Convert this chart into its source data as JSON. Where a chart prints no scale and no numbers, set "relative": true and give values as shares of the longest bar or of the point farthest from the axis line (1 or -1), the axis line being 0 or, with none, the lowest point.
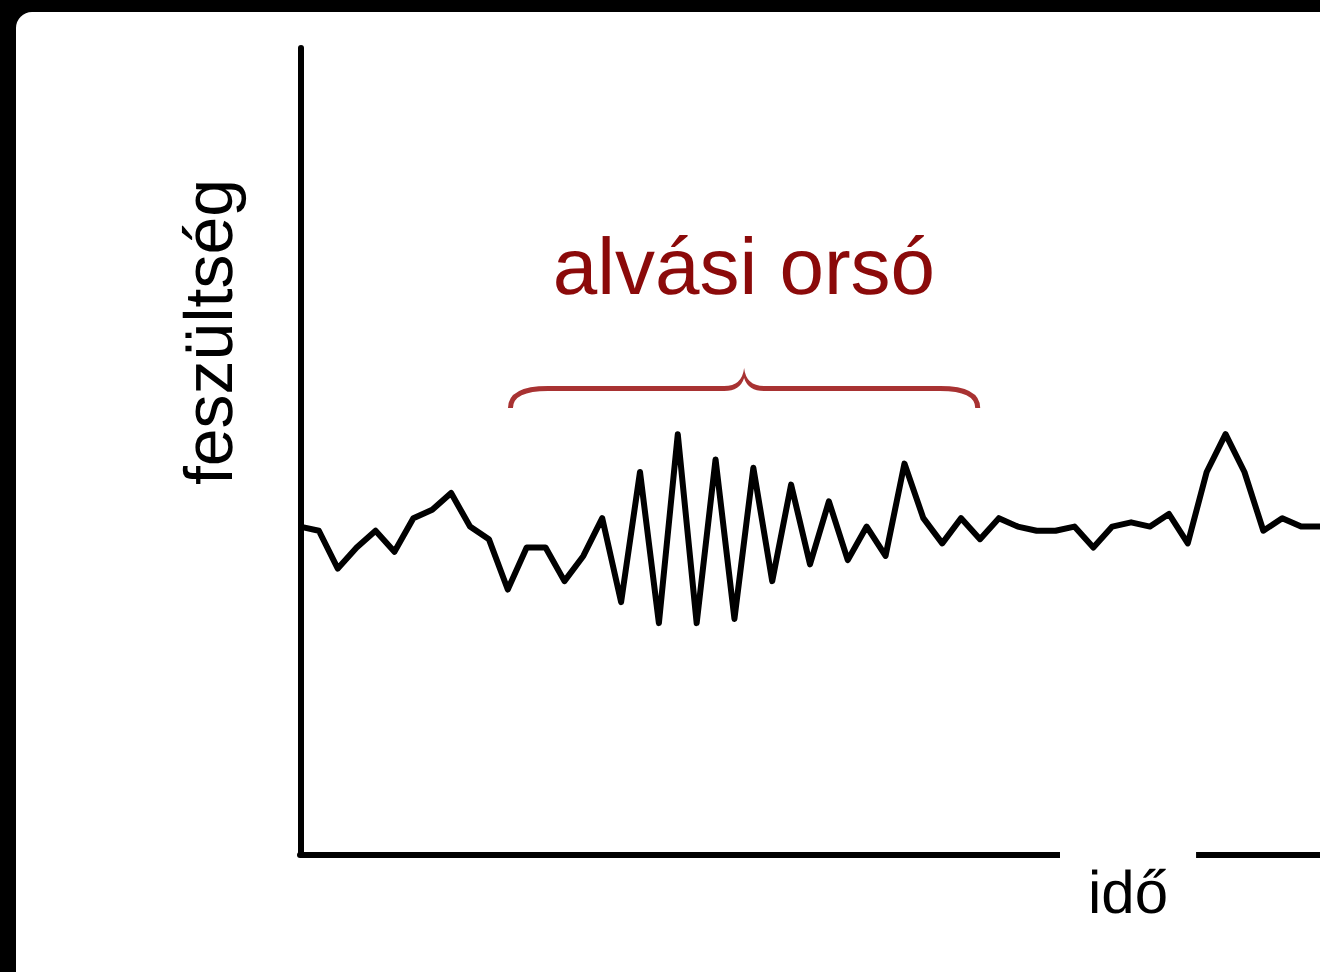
{
  "chart_data": {
    "type": "line",
    "relative": true,
    "xlabel": "idő",
    "ylabel": "feszültség",
    "annotations": [
      "alvási orsó"
    ],
    "color": "#000000",
    "categories": [
      null,
      null,
      null,
      null,
      null,
      null,
      null,
      null,
      null,
      null,
      null,
      null,
      null,
      null,
      null,
      null,
      null,
      null,
      null,
      null,
      null,
      null,
      null,
      null,
      null,
      null,
      null,
      null,
      null,
      null,
      null,
      null,
      null,
      null,
      null,
      null,
      null,
      null,
      null,
      null,
      null,
      null,
      null,
      null,
      null,
      null,
      null,
      null,
      null,
      null,
      null,
      null,
      null,
      null,
      null
    ],
    "values": [
      0.78,
      0.77,
      0.68,
      0.73,
      0.77,
      0.72,
      0.8,
      0.82,
      0.86,
      0.78,
      0.75,
      0.63,
      0.73,
      0.73,
      0.65,
      0.71,
      0.8,
      0.6,
      0.91,
      0.55,
      1,
      0.55,
      0.94,
      0.56,
      0.92,
      0.65,
      0.88,
      0.69,
      0.84,
      0.7,
      0.78,
      0.71,
      0.93,
      0.8,
      0.74,
      0.8,
      0.75,
      0.8,
      0.78,
      0.77,
      0.77,
      0.78,
      0.73,
      0.78,
      0.79,
      0.78,
      0.81,
      0.74,
      0.91,
      1,
      0.91,
      0.77,
      0.8,
      0.78,
      0.78
    ]
  }
}
